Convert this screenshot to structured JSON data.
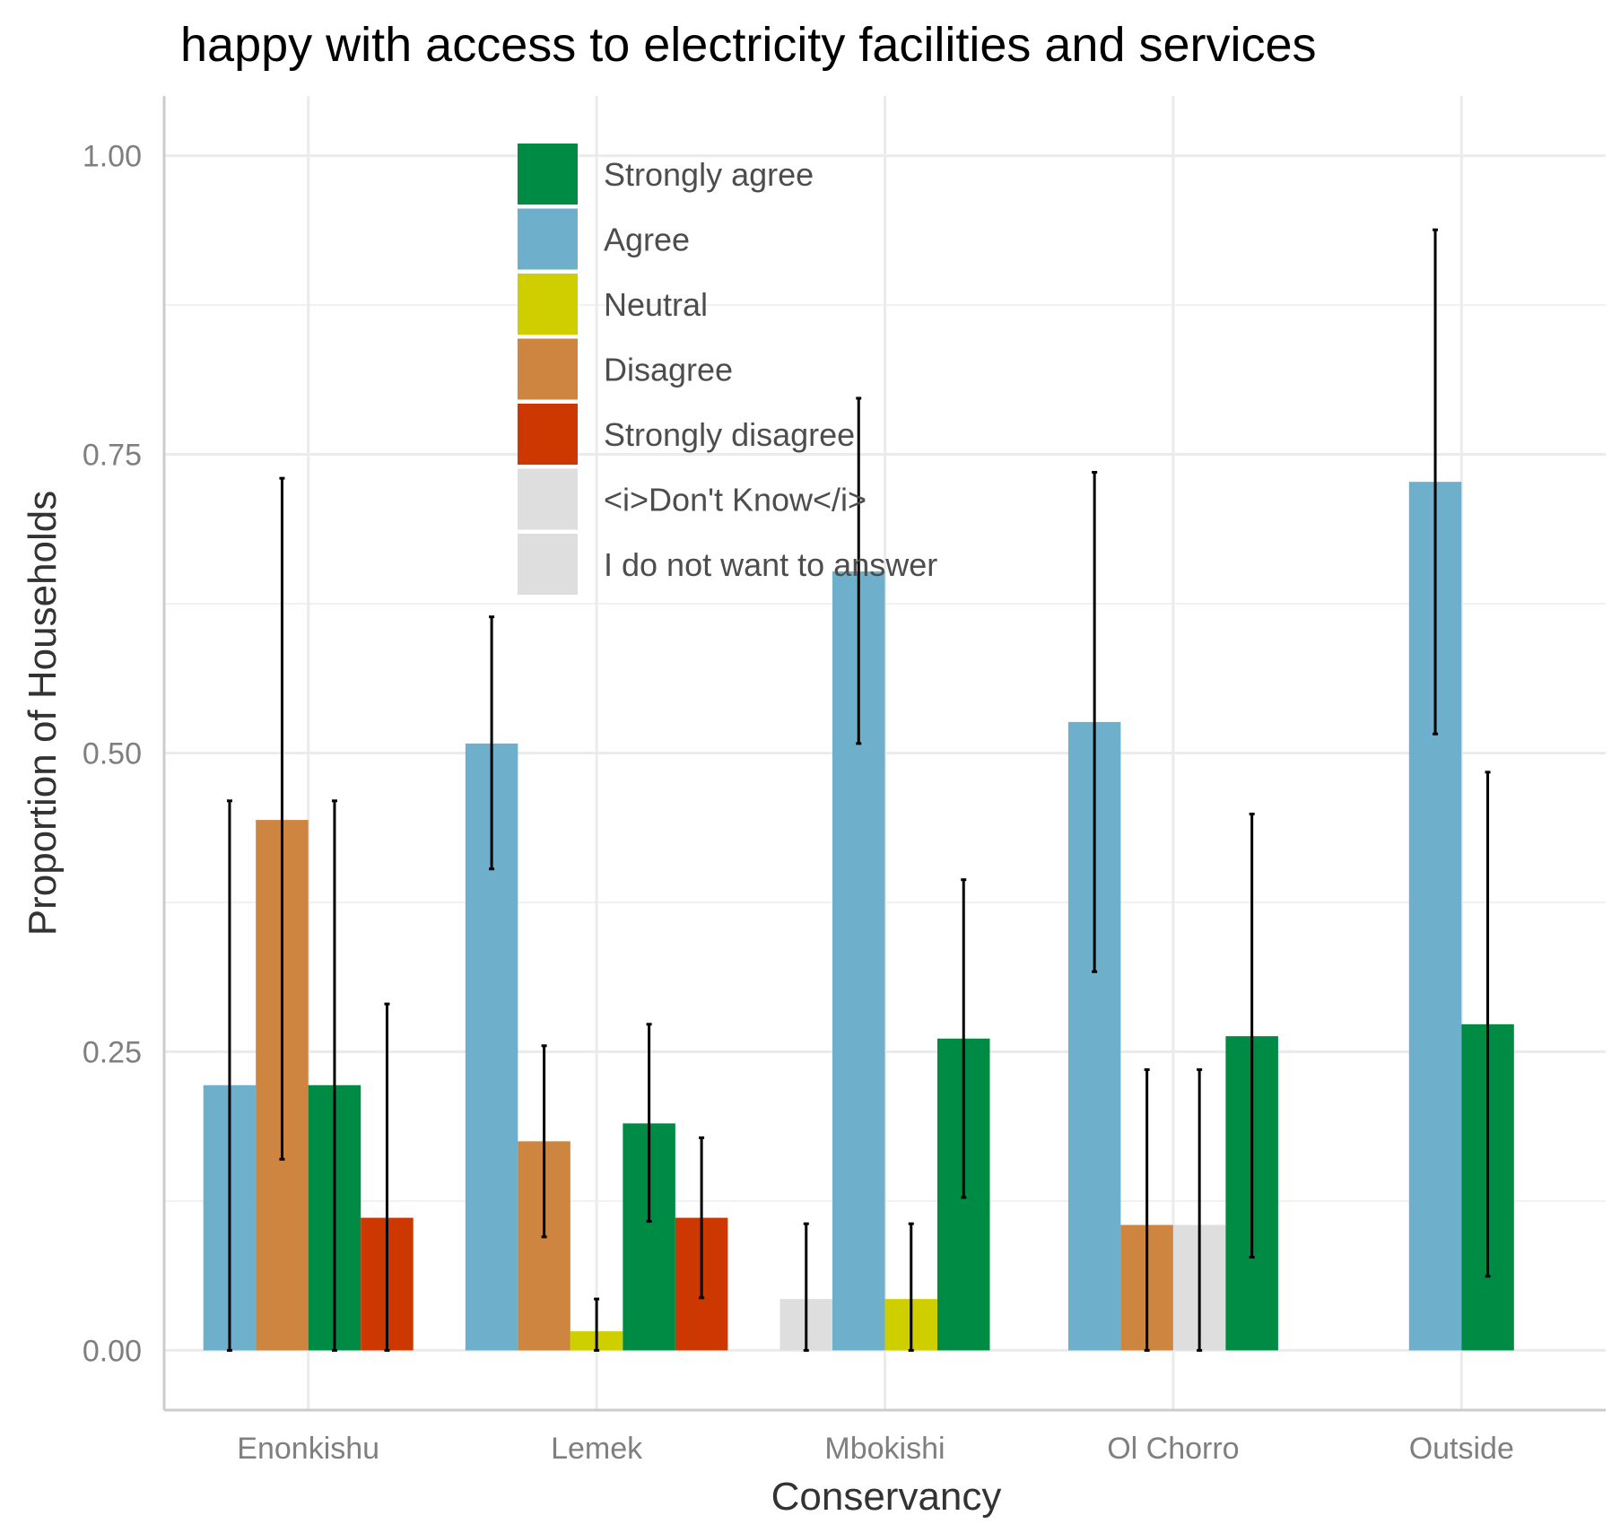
{
  "chart_data": {
    "type": "bar",
    "title": "happy with access to electricity facilities and services",
    "xlabel": "Conservancy",
    "ylabel": "Proportion of Households",
    "ylim": [
      -0.05,
      1.05
    ],
    "yticks": [
      0.0,
      0.25,
      0.5,
      0.75,
      1.0
    ],
    "ytick_labels": [
      "0.00",
      "0.25",
      "0.50",
      "0.75",
      "1.00"
    ],
    "grid": true,
    "legend_position": "top-center-inside",
    "categories": [
      "Enonkishu",
      "Lemek",
      "Mbokishi",
      "Ol Chorro",
      "Outside"
    ],
    "legend": [
      {
        "name": "Strongly agree",
        "color": "#008b45"
      },
      {
        "name": "Agree",
        "color": "#6eafcb"
      },
      {
        "name": "Neutral",
        "color": "#cfcf00"
      },
      {
        "name": "Disagree",
        "color": "#cd853f"
      },
      {
        "name": "Strongly disagree",
        "color": "#cd3700"
      },
      {
        "name": "<i>Don't Know</i>",
        "color": "#dedede"
      },
      {
        "name": "I do not want to answer",
        "color": "#dedede"
      }
    ],
    "bars": [
      {
        "category": "Enonkishu",
        "response": "Agree",
        "value": 0.222,
        "err_low": 0.0,
        "err_high": 0.46
      },
      {
        "category": "Enonkishu",
        "response": "Disagree",
        "value": 0.444,
        "err_low": 0.16,
        "err_high": 0.73
      },
      {
        "category": "Enonkishu",
        "response": "Strongly agree",
        "value": 0.222,
        "err_low": 0.0,
        "err_high": 0.46
      },
      {
        "category": "Enonkishu",
        "response": "Strongly disagree",
        "value": 0.111,
        "err_low": 0.0,
        "err_high": 0.29
      },
      {
        "category": "Lemek",
        "response": "Agree",
        "value": 0.508,
        "err_low": 0.403,
        "err_high": 0.614
      },
      {
        "category": "Lemek",
        "response": "Disagree",
        "value": 0.175,
        "err_low": 0.095,
        "err_high": 0.255
      },
      {
        "category": "Lemek",
        "response": "Neutral",
        "value": 0.016,
        "err_low": 0.0,
        "err_high": 0.043
      },
      {
        "category": "Lemek",
        "response": "Strongly agree",
        "value": 0.19,
        "err_low": 0.108,
        "err_high": 0.273
      },
      {
        "category": "Lemek",
        "response": "Strongly disagree",
        "value": 0.111,
        "err_low": 0.044,
        "err_high": 0.178
      },
      {
        "category": "Mbokishi",
        "response": "<i>Don't Know</i>",
        "value": 0.043,
        "err_low": 0.0,
        "err_high": 0.106
      },
      {
        "category": "Mbokishi",
        "response": "Agree",
        "value": 0.652,
        "err_low": 0.508,
        "err_high": 0.797
      },
      {
        "category": "Mbokishi",
        "response": "Neutral",
        "value": 0.043,
        "err_low": 0.0,
        "err_high": 0.106
      },
      {
        "category": "Mbokishi",
        "response": "Strongly agree",
        "value": 0.261,
        "err_low": 0.128,
        "err_high": 0.394
      },
      {
        "category": "Ol Chorro",
        "response": "Agree",
        "value": 0.526,
        "err_low": 0.317,
        "err_high": 0.735
      },
      {
        "category": "Ol Chorro",
        "response": "Disagree",
        "value": 0.105,
        "err_low": 0.0,
        "err_high": 0.235
      },
      {
        "category": "Ol Chorro",
        "response": "<i>Don't Know</i>",
        "value": 0.105,
        "err_low": 0.0,
        "err_high": 0.235
      },
      {
        "category": "Ol Chorro",
        "response": "Strongly agree",
        "value": 0.263,
        "err_low": 0.078,
        "err_high": 0.449
      },
      {
        "category": "Outside",
        "response": "Agree",
        "value": 0.727,
        "err_low": 0.516,
        "err_high": 0.938
      },
      {
        "category": "Outside",
        "response": "Strongly agree",
        "value": 0.273,
        "err_low": 0.062,
        "err_high": 0.484
      }
    ]
  }
}
